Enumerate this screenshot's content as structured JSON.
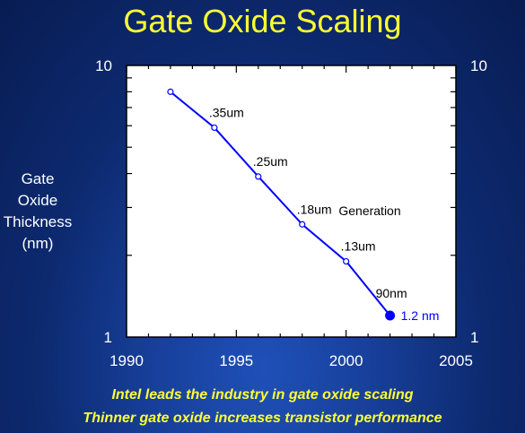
{
  "title": "Gate Oxide Scaling",
  "chart_data": {
    "type": "line",
    "title": "Gate Oxide Scaling",
    "ylabel": "Gate Oxide Thickness (nm)",
    "xlabel": "",
    "y_scale": "log",
    "xlim": [
      1990,
      2005
    ],
    "ylim": [
      1,
      10
    ],
    "x_ticks": [
      "1990",
      "1995",
      "2000",
      "2005"
    ],
    "y_ticks_left": [
      "10",
      "1"
    ],
    "y_ticks_right": [
      "10",
      "1"
    ],
    "series": [
      {
        "color": "#0000ff",
        "points": [
          {
            "x": 1992,
            "y": 8.0,
            "label": ""
          },
          {
            "x": 1994,
            "y": 5.9,
            "label": ".35um"
          },
          {
            "x": 1996,
            "y": 3.9,
            "label": ".25um"
          },
          {
            "x": 1998,
            "y": 2.6,
            "label": ".18um"
          },
          {
            "x": 2000,
            "y": 1.9,
            "label": ".13um"
          },
          {
            "x": 2002,
            "y": 1.2,
            "label": "90nm",
            "highlight": true,
            "value_label": "1.2 nm"
          }
        ]
      }
    ],
    "annotations": [
      "Generation"
    ]
  },
  "captions": [
    "Intel leads the industry in gate oxide scaling",
    "Thinner gate oxide increases transistor performance"
  ],
  "colors": {
    "title": "#ffff33",
    "line": "#0000ff",
    "plot_bg": "#ffffff",
    "axis_text": "#ffffff"
  }
}
